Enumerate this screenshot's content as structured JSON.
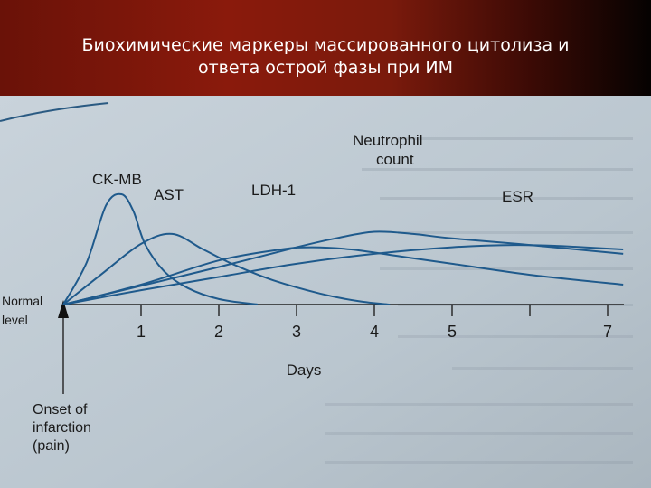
{
  "slide": {
    "title_line1": "Биохимические маркеры массированного цитолиза и",
    "title_line2": "ответа острой фазы при ИМ"
  },
  "chart_data": {
    "type": "line",
    "xlabel": "Days",
    "x_ticks": [
      1,
      2,
      3,
      4,
      5,
      6,
      7
    ],
    "x_tick_labels": [
      "1",
      "2",
      "3",
      "4",
      "5",
      "",
      "7"
    ],
    "xlim": [
      0,
      7.3
    ],
    "y_baseline_label": [
      "Normal",
      "level"
    ],
    "onset_label": [
      "Onset of",
      "infarction",
      "(pain)"
    ],
    "series": [
      {
        "name": "CK-MB",
        "x": [
          0,
          0.3,
          0.55,
          0.75,
          0.9,
          1.05,
          1.3,
          1.6,
          2.0,
          2.5
        ],
        "y": [
          0,
          0.38,
          0.9,
          1.0,
          0.85,
          0.55,
          0.3,
          0.15,
          0.05,
          0
        ]
      },
      {
        "name": "AST",
        "x": [
          0,
          0.5,
          1.0,
          1.4,
          1.8,
          2.2,
          2.7,
          3.3,
          3.8,
          4.2
        ],
        "y": [
          0,
          0.28,
          0.55,
          0.64,
          0.5,
          0.36,
          0.22,
          0.1,
          0.03,
          0
        ]
      },
      {
        "name": "LDH-1",
        "x": [
          0,
          1.0,
          2.0,
          2.8,
          3.2,
          3.7,
          4.3,
          5.0,
          6.0,
          7.2
        ],
        "y": [
          0,
          0.18,
          0.4,
          0.5,
          0.52,
          0.5,
          0.44,
          0.37,
          0.27,
          0.18
        ]
      },
      {
        "name": "Neutrophil count",
        "x": [
          0,
          1.0,
          2.0,
          3.0,
          3.5,
          4.0,
          4.5,
          5.0,
          6.0,
          7.2
        ],
        "y": [
          0,
          0.17,
          0.34,
          0.52,
          0.6,
          0.66,
          0.64,
          0.6,
          0.54,
          0.46
        ]
      },
      {
        "name": "ESR",
        "x": [
          0,
          1.0,
          2.0,
          3.0,
          4.0,
          5.0,
          5.8,
          6.4,
          7.2
        ],
        "y": [
          0,
          0.13,
          0.25,
          0.37,
          0.46,
          0.52,
          0.54,
          0.53,
          0.5
        ]
      }
    ],
    "labels": [
      "CK-MB",
      "AST",
      "LDH-1",
      "Neutrophil",
      "count",
      "ESR"
    ]
  }
}
